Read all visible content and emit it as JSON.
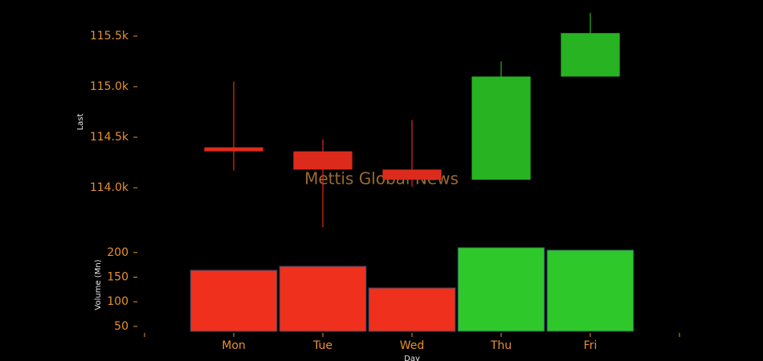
{
  "chart_data": {
    "type": "candlestick",
    "watermark": "Mettis Global News",
    "xlabel": "Day",
    "ylabel": "Last",
    "categories": [
      "Mon",
      "Tue",
      "Wed",
      "Thu",
      "Fri"
    ],
    "xlim": [
      -1,
      5
    ],
    "open": [
      114400,
      114360,
      114180,
      114080,
      115100
    ],
    "high": [
      115050,
      114480,
      114670,
      115250,
      115730
    ],
    "low": [
      114170,
      113610,
      114010,
      114080,
      115100
    ],
    "close": [
      114360,
      114180,
      114080,
      115100,
      115530
    ],
    "up_color": "#27b322",
    "down_color": "#dc2b1c",
    "ylim": [
      113556,
      115778
    ],
    "yticks": [
      {
        "value": 114000,
        "label": "114.0k"
      },
      {
        "value": 114500,
        "label": "114.5k"
      },
      {
        "value": 115000,
        "label": "115.0k"
      },
      {
        "value": 115500,
        "label": "115.5k"
      }
    ],
    "volume": {
      "ylabel": "Volume (Mn)",
      "values": [
        164,
        172,
        128,
        210,
        205
      ],
      "up_color": "#2ec82a",
      "down_color": "#ee301c",
      "ylim": [
        40,
        216
      ],
      "yticks": [
        50,
        100,
        150,
        200
      ]
    }
  }
}
